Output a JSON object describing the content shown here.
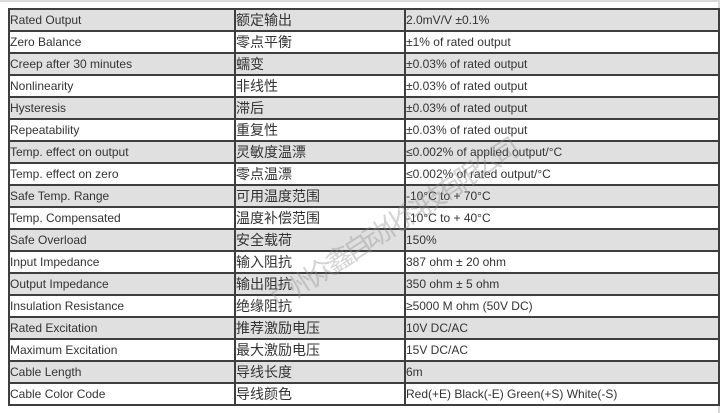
{
  "table": {
    "rows": [
      {
        "en": "Rated Output",
        "zh": "额定输出",
        "value": "2.0mV/V ±0.1%"
      },
      {
        "en": "Zero Balance",
        "zh": "零点平衡",
        "value": "±1% of rated output"
      },
      {
        "en": "Creep after 30 minutes",
        "zh": "蠕变",
        "value": "±0.03% of rated output"
      },
      {
        "en": "Nonlinearity",
        "zh": "非线性",
        "value": "±0.03% of rated output"
      },
      {
        "en": "Hysteresis",
        "zh": "滞后",
        "value": "±0.03% of rated output"
      },
      {
        "en": "Repeatability",
        "zh": "重复性",
        "value": "±0.03% of rated output"
      },
      {
        "en": "Temp. effect on output",
        "zh": "灵敏度温漂",
        "value": "≤0.002% of applied output/°C"
      },
      {
        "en": "Temp. effect on zero",
        "zh": "零点温漂",
        "value": "≤0.002% of rated output/°C"
      },
      {
        "en": "Safe Temp. Range",
        "zh": "可用温度范围",
        "value": "-10°C to + 70°C"
      },
      {
        "en": "Temp. Compensated",
        "zh": "温度补偿范围",
        "value": "-10°C to + 40°C"
      },
      {
        "en": "Safe Overload",
        "zh": "安全载荷",
        "value": "150%"
      },
      {
        "en": "Input Impedance",
        "zh": "输入阻抗",
        "value": "387 ohm ± 20 ohm"
      },
      {
        "en": "Output Impedance",
        "zh": "输出阻抗",
        "value": "350 ohm ± 5 ohm"
      },
      {
        "en": "Insulation Resistance",
        "zh": "绝缘阻抗",
        "value": "≥5000 M ohm (50V DC)"
      },
      {
        "en": "Rated Excitation",
        "zh": "推荐激励电压",
        "value": "10V DC/AC"
      },
      {
        "en": "Maximum Excitation",
        "zh": "最大激励电压",
        "value": "15V DC/AC"
      },
      {
        "en": "Cable Length",
        "zh": "导线长度",
        "value": "6m"
      },
      {
        "en": "Cable Color Code",
        "zh": "导线颜色",
        "value": "Red(+E) Black(-E) Green(+S) White(-S)"
      }
    ]
  },
  "watermark": {
    "text": "广州众鑫自动化科技有限公司"
  },
  "colors": {
    "row_alt_background": "#e0e0e0",
    "row_background": "#ffffff",
    "table_border": "#3e3e3e",
    "text": "#333333",
    "watermark": "#8f8f8f"
  }
}
